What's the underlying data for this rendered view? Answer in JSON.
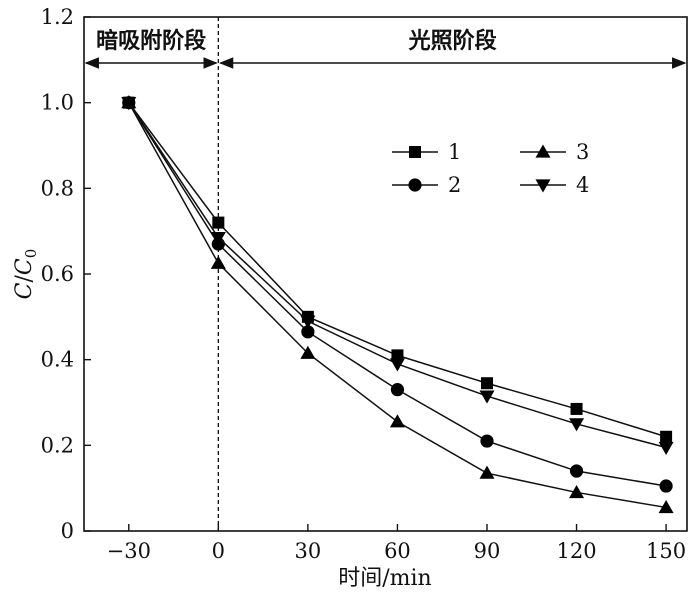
{
  "chart_data": {
    "type": "line",
    "x": [
      -30,
      0,
      30,
      60,
      90,
      120,
      150
    ],
    "x_tick_labels": [
      "−30",
      "0",
      "30",
      "60",
      "90",
      "120",
      "150"
    ],
    "y_tick_labels": [
      "0",
      "0.2",
      "0.4",
      "0.6",
      "0.8",
      "1.0",
      "1.2"
    ],
    "y_ticks": [
      0,
      0.2,
      0.4,
      0.6,
      0.8,
      1.0,
      1.2
    ],
    "xlim": [
      -45,
      157
    ],
    "ylim": [
      0,
      1.2
    ],
    "xlabel": "时间/min",
    "ylabel": "C/C0",
    "ylabel_parts": {
      "C1": "C",
      "slash": "/",
      "C2": "C",
      "sub": "0"
    },
    "grid": false,
    "legend_position": "upper-right",
    "phases": [
      {
        "label": "暗吸附阶段",
        "x_start": -45,
        "x_end": 0
      },
      {
        "label": "光照阶段",
        "x_start": 0,
        "x_end": 157
      }
    ],
    "series": [
      {
        "name": "1",
        "marker": "square",
        "values": [
          1.0,
          0.72,
          0.5,
          0.41,
          0.345,
          0.285,
          0.22
        ]
      },
      {
        "name": "2",
        "marker": "circle",
        "values": [
          1.0,
          0.67,
          0.465,
          0.33,
          0.21,
          0.14,
          0.105
        ]
      },
      {
        "name": "3",
        "marker": "triangle-up",
        "values": [
          1.0,
          0.625,
          0.415,
          0.255,
          0.135,
          0.09,
          0.055
        ]
      },
      {
        "name": "4",
        "marker": "triangle-down",
        "values": [
          1.0,
          0.685,
          0.49,
          0.39,
          0.315,
          0.25,
          0.195
        ]
      }
    ]
  }
}
